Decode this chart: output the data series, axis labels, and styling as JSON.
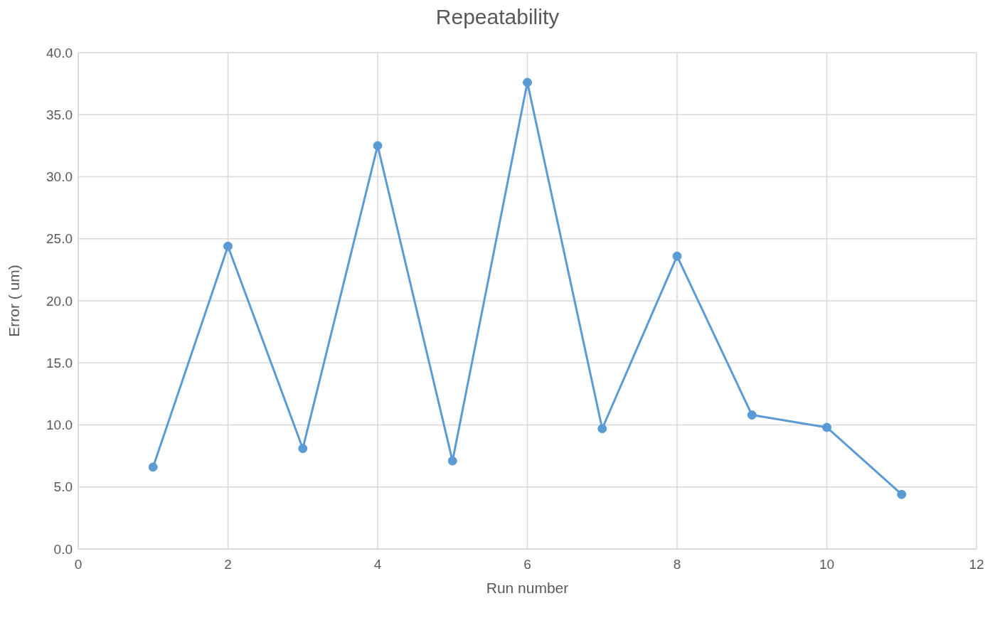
{
  "chart_data": {
    "type": "line",
    "title": "Repeatability",
    "xlabel": "Run number",
    "ylabel": "Error ( um)",
    "x": [
      1,
      2,
      3,
      4,
      5,
      6,
      7,
      8,
      9,
      10,
      11
    ],
    "series": [
      {
        "color": "#5b9bd5",
        "values": [
          6.6,
          24.4,
          8.1,
          32.5,
          7.1,
          37.6,
          9.7,
          23.6,
          10.8,
          9.8,
          4.4
        ]
      }
    ],
    "xlim": [
      0,
      12
    ],
    "xticks": [
      0,
      2,
      4,
      6,
      8,
      10,
      12
    ],
    "ylim": [
      0,
      40
    ],
    "yticks": [
      {
        "value": 0,
        "label": "0.0"
      },
      {
        "value": 5,
        "label": "5.0"
      },
      {
        "value": 10,
        "label": "10.0"
      },
      {
        "value": 15,
        "label": "15.0"
      },
      {
        "value": 20,
        "label": "20.0"
      },
      {
        "value": 25,
        "label": "25.0"
      },
      {
        "value": 30,
        "label": "30.0"
      },
      {
        "value": 35,
        "label": "35.0"
      },
      {
        "value": 40,
        "label": "40.0"
      }
    ],
    "grid": true,
    "marker": "circle",
    "line_style": "solid",
    "legend": false
  }
}
